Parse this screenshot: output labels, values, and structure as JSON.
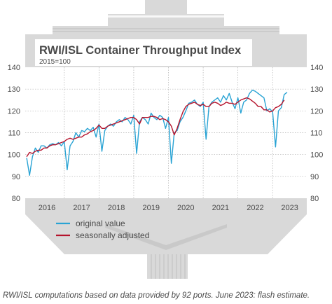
{
  "chart_data": {
    "type": "line",
    "title": "RWI/ISL Container Throughput Index",
    "subtitle": "2015=100",
    "ylim": [
      80,
      140
    ],
    "y_ticks": [
      "80",
      "90",
      "100",
      "110",
      "120",
      "130",
      "140"
    ],
    "x_start": "2015-12",
    "x_end": "2023-06",
    "year_labels": [
      "2016",
      "2017",
      "2018",
      "2019",
      "2020",
      "2021",
      "2022",
      "2023"
    ],
    "grid": true,
    "legend_position": "bottom-left",
    "series": [
      {
        "name": "original value",
        "color": "#29a3d4",
        "values": [
          98.5,
          90.5,
          99,
          103,
          101,
          104,
          104,
          103,
          104.5,
          105,
          104.5,
          105.5,
          104,
          106,
          93,
          104,
          106,
          110,
          108,
          111,
          110.5,
          112,
          111,
          112.5,
          108,
          114,
          101.5,
          111,
          113,
          114,
          113,
          115,
          116,
          115,
          117,
          116,
          114,
          118,
          100.5,
          115,
          117,
          116,
          114,
          119,
          117,
          116,
          118,
          117,
          112,
          117,
          96,
          110,
          111,
          115,
          117,
          120,
          123.5,
          124,
          125,
          123,
          122,
          124,
          107,
          122,
          124,
          125,
          126,
          124,
          127,
          125,
          128,
          124,
          121,
          126,
          119,
          124,
          125,
          128,
          129.5,
          129,
          128,
          127,
          126,
          120,
          121,
          119.5,
          103.5,
          120,
          121.5,
          127.5,
          128.5
        ]
      },
      {
        "name": "seasonally adjusted",
        "color": "#b5132c",
        "values": [
          99,
          101,
          100.5,
          101.5,
          102,
          102,
          103,
          103,
          104,
          104.5,
          104.5,
          105,
          105.5,
          106,
          107,
          107.5,
          107,
          107.5,
          108,
          108,
          109,
          109.5,
          110.5,
          111,
          112,
          113.5,
          112,
          112,
          113,
          113.5,
          114,
          114.5,
          115,
          115.5,
          116,
          116.5,
          117,
          117,
          116,
          114,
          117,
          117,
          117,
          117.5,
          117.5,
          117,
          116,
          116.5,
          116,
          115,
          113,
          109,
          112,
          116,
          119.5,
          122,
          123,
          123.5,
          124,
          123,
          122.5,
          123,
          122,
          122,
          123.5,
          124,
          123.5,
          122.5,
          123,
          124,
          123.5,
          123.5,
          123,
          124,
          125,
          125.5,
          126,
          125.5,
          124.5,
          123.5,
          122,
          122,
          120.5,
          120.5,
          119.5,
          120,
          121.5,
          122,
          123,
          125
        ]
      }
    ]
  },
  "source_note": "RWI/ISL computations based on data provided by 92 ports. June 2023: flash estimate.",
  "colors": {
    "ship_hull": "#d9d9d9",
    "ship_dark": "#bdbdbd",
    "plot_background": "#ffffff",
    "text": "#4a4a4a"
  }
}
